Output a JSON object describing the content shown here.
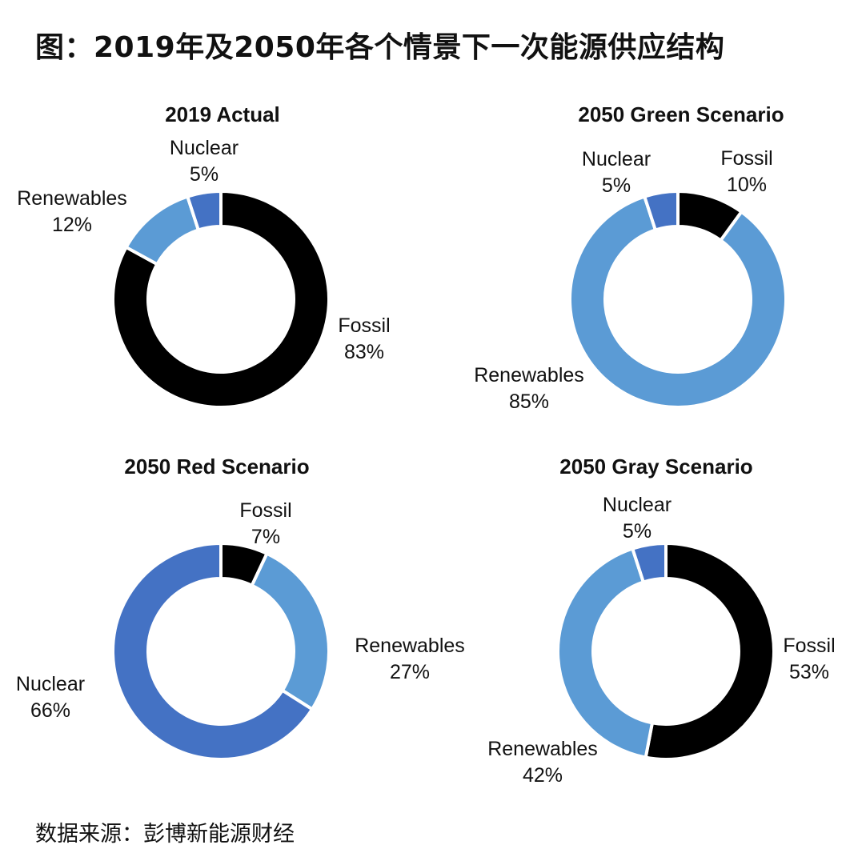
{
  "page": {
    "title": "图：2019年及2050年各个情景下一次能源供应结构",
    "source": "数据来源：彭博新能源财经"
  },
  "colors": {
    "Fossil": "#000000",
    "Renewables": "#5b9bd5",
    "Nuclear": "#4472c4",
    "separator": "#ffffff"
  },
  "chart_data": [
    {
      "type": "pie",
      "title": "2019 Actual",
      "slices": [
        {
          "name": "Fossil",
          "value": 83,
          "label": "83%"
        },
        {
          "name": "Renewables",
          "value": 12,
          "label": "12%"
        },
        {
          "name": "Nuclear",
          "value": 5,
          "label": "5%"
        }
      ]
    },
    {
      "type": "pie",
      "title": "2050 Green Scenario",
      "slices": [
        {
          "name": "Fossil",
          "value": 10,
          "label": "10%"
        },
        {
          "name": "Renewables",
          "value": 85,
          "label": "85%"
        },
        {
          "name": "Nuclear",
          "value": 5,
          "label": "5%"
        }
      ]
    },
    {
      "type": "pie",
      "title": "2050 Red Scenario",
      "slices": [
        {
          "name": "Fossil",
          "value": 7,
          "label": "7%"
        },
        {
          "name": "Renewables",
          "value": 27,
          "label": "27%"
        },
        {
          "name": "Nuclear",
          "value": 66,
          "label": "66%"
        }
      ]
    },
    {
      "type": "pie",
      "title": "2050 Gray Scenario",
      "slices": [
        {
          "name": "Fossil",
          "value": 53,
          "label": "53%"
        },
        {
          "name": "Renewables",
          "value": 42,
          "label": "42%"
        },
        {
          "name": "Nuclear",
          "value": 5,
          "label": "5%"
        }
      ]
    }
  ]
}
